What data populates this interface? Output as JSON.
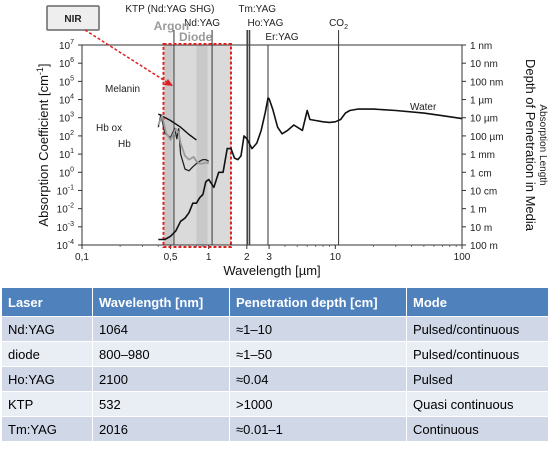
{
  "chart_data": {
    "type": "line",
    "xlabel": "Wavelength [µm]",
    "ylabel_left": "Absorption Coefficient [cm",
    "ylabel_left_sup": "-1",
    "ylabel_left_end": "]",
    "ylabel_right": "Depth of Penetration in Media",
    "ylabel_right_sub": "Absorption Length",
    "x_scale": "log",
    "y_scale": "log",
    "xlim": [
      0.1,
      100
    ],
    "ylim": [
      0.0001,
      10000000
    ],
    "x_ticks": [
      {
        "value": 0.1,
        "label": "0,1"
      },
      {
        "value": 0.5,
        "label": "0,5"
      },
      {
        "value": 1,
        "label": "1"
      },
      {
        "value": 2,
        "label": "2"
      },
      {
        "value": 3,
        "label": "3"
      },
      {
        "value": 10,
        "label": "10"
      },
      {
        "value": 100,
        "label": "100"
      }
    ],
    "y_ticks_left": [
      {
        "value": 10000000,
        "base": "10",
        "exp": "7"
      },
      {
        "value": 1000000,
        "base": "10",
        "exp": "6"
      },
      {
        "value": 100000,
        "base": "10",
        "exp": "5"
      },
      {
        "value": 10000,
        "base": "10",
        "exp": "4"
      },
      {
        "value": 1000,
        "base": "10",
        "exp": "3"
      },
      {
        "value": 100,
        "base": "10",
        "exp": "2"
      },
      {
        "value": 10,
        "base": "10",
        "exp": "1"
      },
      {
        "value": 1,
        "base": "10",
        "exp": "0"
      },
      {
        "value": 0.1,
        "base": "10",
        "exp": "-1"
      },
      {
        "value": 0.01,
        "base": "10",
        "exp": "-2"
      },
      {
        "value": 0.001,
        "base": "10",
        "exp": "-3"
      },
      {
        "value": 0.0001,
        "base": "10",
        "exp": "-4"
      }
    ],
    "y_ticks_right": [
      {
        "value": 10000000,
        "label": "1 nm"
      },
      {
        "value": 1000000,
        "label": "10 nm"
      },
      {
        "value": 100000,
        "label": "100 nm"
      },
      {
        "value": 10000,
        "label": "1 µm"
      },
      {
        "value": 1000,
        "label": "10 µm"
      },
      {
        "value": 100,
        "label": "100 µm"
      },
      {
        "value": 10,
        "label": "1 mm"
      },
      {
        "value": 1,
        "label": "1 cm"
      },
      {
        "value": 0.1,
        "label": "10 cm"
      },
      {
        "value": 0.01,
        "label": "1 m"
      },
      {
        "value": 0.001,
        "label": "10 m"
      },
      {
        "value": 0.0001,
        "label": "100 m"
      }
    ],
    "laser_lines": [
      {
        "name": "KTP (Nd:YAG SHG)",
        "x": 0.532
      },
      {
        "name": "Nd:YAG",
        "x": 1.064
      },
      {
        "name": "Tm:YAG",
        "x": 2.016
      },
      {
        "name": "Ho:YAG",
        "x": 2.1
      },
      {
        "name": "Er:YAG",
        "x": 2.94
      },
      {
        "name": "CO",
        "sub": "2",
        "x": 10.6
      }
    ],
    "bands": [
      {
        "name": "Argon",
        "range": [
          0.45,
          0.52
        ]
      },
      {
        "name": "Diode",
        "range": [
          0.8,
          0.98
        ]
      }
    ],
    "nir_callout": {
      "label": "NIR",
      "range": [
        0.44,
        1.5
      ]
    },
    "series": [
      {
        "name": "Water",
        "color": "#111111",
        "points": [
          [
            0.4,
            0.0002
          ],
          [
            0.45,
            0.0002
          ],
          [
            0.5,
            0.0003
          ],
          [
            0.55,
            0.0006
          ],
          [
            0.6,
            0.002
          ],
          [
            0.65,
            0.003
          ],
          [
            0.7,
            0.006
          ],
          [
            0.75,
            0.02
          ],
          [
            0.8,
            0.02
          ],
          [
            0.85,
            0.04
          ],
          [
            0.9,
            0.06
          ],
          [
            0.95,
            0.3
          ],
          [
            1.0,
            0.4
          ],
          [
            1.1,
            0.15
          ],
          [
            1.2,
            1
          ],
          [
            1.3,
            1
          ],
          [
            1.4,
            20
          ],
          [
            1.5,
            20
          ],
          [
            1.6,
            6
          ],
          [
            1.7,
            5
          ],
          [
            1.8,
            8
          ],
          [
            1.9,
            100
          ],
          [
            2.0,
            70
          ],
          [
            2.2,
            20
          ],
          [
            2.4,
            40
          ],
          [
            2.6,
            200
          ],
          [
            2.8,
            2000
          ],
          [
            2.94,
            12000
          ],
          [
            3.0,
            11000
          ],
          [
            3.2,
            3000
          ],
          [
            3.5,
            300
          ],
          [
            3.8,
            130
          ],
          [
            4.2,
            200
          ],
          [
            4.7,
            400
          ],
          [
            5.5,
            200
          ],
          [
            6.0,
            2500
          ],
          [
            6.3,
            800
          ],
          [
            7,
            700
          ],
          [
            8,
            600
          ],
          [
            9,
            550
          ],
          [
            10,
            600
          ],
          [
            11,
            800
          ],
          [
            12,
            1800
          ],
          [
            13,
            2500
          ],
          [
            15,
            3000
          ],
          [
            20,
            3000
          ],
          [
            30,
            2500
          ],
          [
            50,
            1800
          ],
          [
            70,
            1300
          ],
          [
            100,
            900
          ]
        ]
      },
      {
        "name": "Melanin",
        "color": "#111111",
        "points": [
          [
            0.4,
            1600
          ],
          [
            0.5,
            700
          ],
          [
            0.6,
            300
          ],
          [
            0.7,
            120
          ],
          [
            0.8,
            60
          ]
        ]
      },
      {
        "name": "Hb ox",
        "color": "#222222",
        "points": [
          [
            0.4,
            300
          ],
          [
            0.42,
            1500
          ],
          [
            0.45,
            150
          ],
          [
            0.5,
            80
          ],
          [
            0.54,
            260
          ],
          [
            0.56,
            70
          ],
          [
            0.58,
            250
          ],
          [
            0.6,
            10
          ],
          [
            0.65,
            1.5
          ],
          [
            0.7,
            1.2
          ],
          [
            0.75,
            2
          ],
          [
            0.8,
            3
          ],
          [
            0.85,
            4
          ],
          [
            0.9,
            5
          ],
          [
            0.95,
            5
          ],
          [
            1.0,
            4
          ]
        ]
      },
      {
        "name": "Hb",
        "color": "#9a9a9a",
        "points": [
          [
            0.4,
            400
          ],
          [
            0.43,
            1300
          ],
          [
            0.46,
            150
          ],
          [
            0.5,
            60
          ],
          [
            0.55,
            250
          ],
          [
            0.58,
            150
          ],
          [
            0.6,
            40
          ],
          [
            0.65,
            8
          ],
          [
            0.7,
            5
          ],
          [
            0.76,
            7
          ],
          [
            0.8,
            4
          ],
          [
            0.85,
            3
          ],
          [
            0.9,
            3
          ],
          [
            0.95,
            3.5
          ],
          [
            1.0,
            3
          ]
        ]
      }
    ]
  },
  "table": {
    "headers": [
      "Laser",
      "Wavelength [nm]",
      "Penetration depth [cm]",
      "Mode"
    ],
    "rows": [
      [
        "Nd:YAG",
        "1064",
        "≈1–10",
        "Pulsed/continuous"
      ],
      [
        "diode",
        "800–980",
        "≈1–50",
        "Pulsed/continuous"
      ],
      [
        "Ho:YAG",
        "2100",
        "≈0.04",
        "Pulsed"
      ],
      [
        "KTP",
        "532",
        ">1000",
        "Quasi continuous"
      ],
      [
        "Tm:YAG",
        "2016",
        "≈0.01–1",
        "Continuous"
      ]
    ]
  },
  "colors": {
    "header_bg": "#4f81bd",
    "row_odd": "#d0d8e8",
    "row_even": "#e9edf4",
    "nir_dash": "#e02020",
    "band_fill": "#d4d4d4"
  }
}
